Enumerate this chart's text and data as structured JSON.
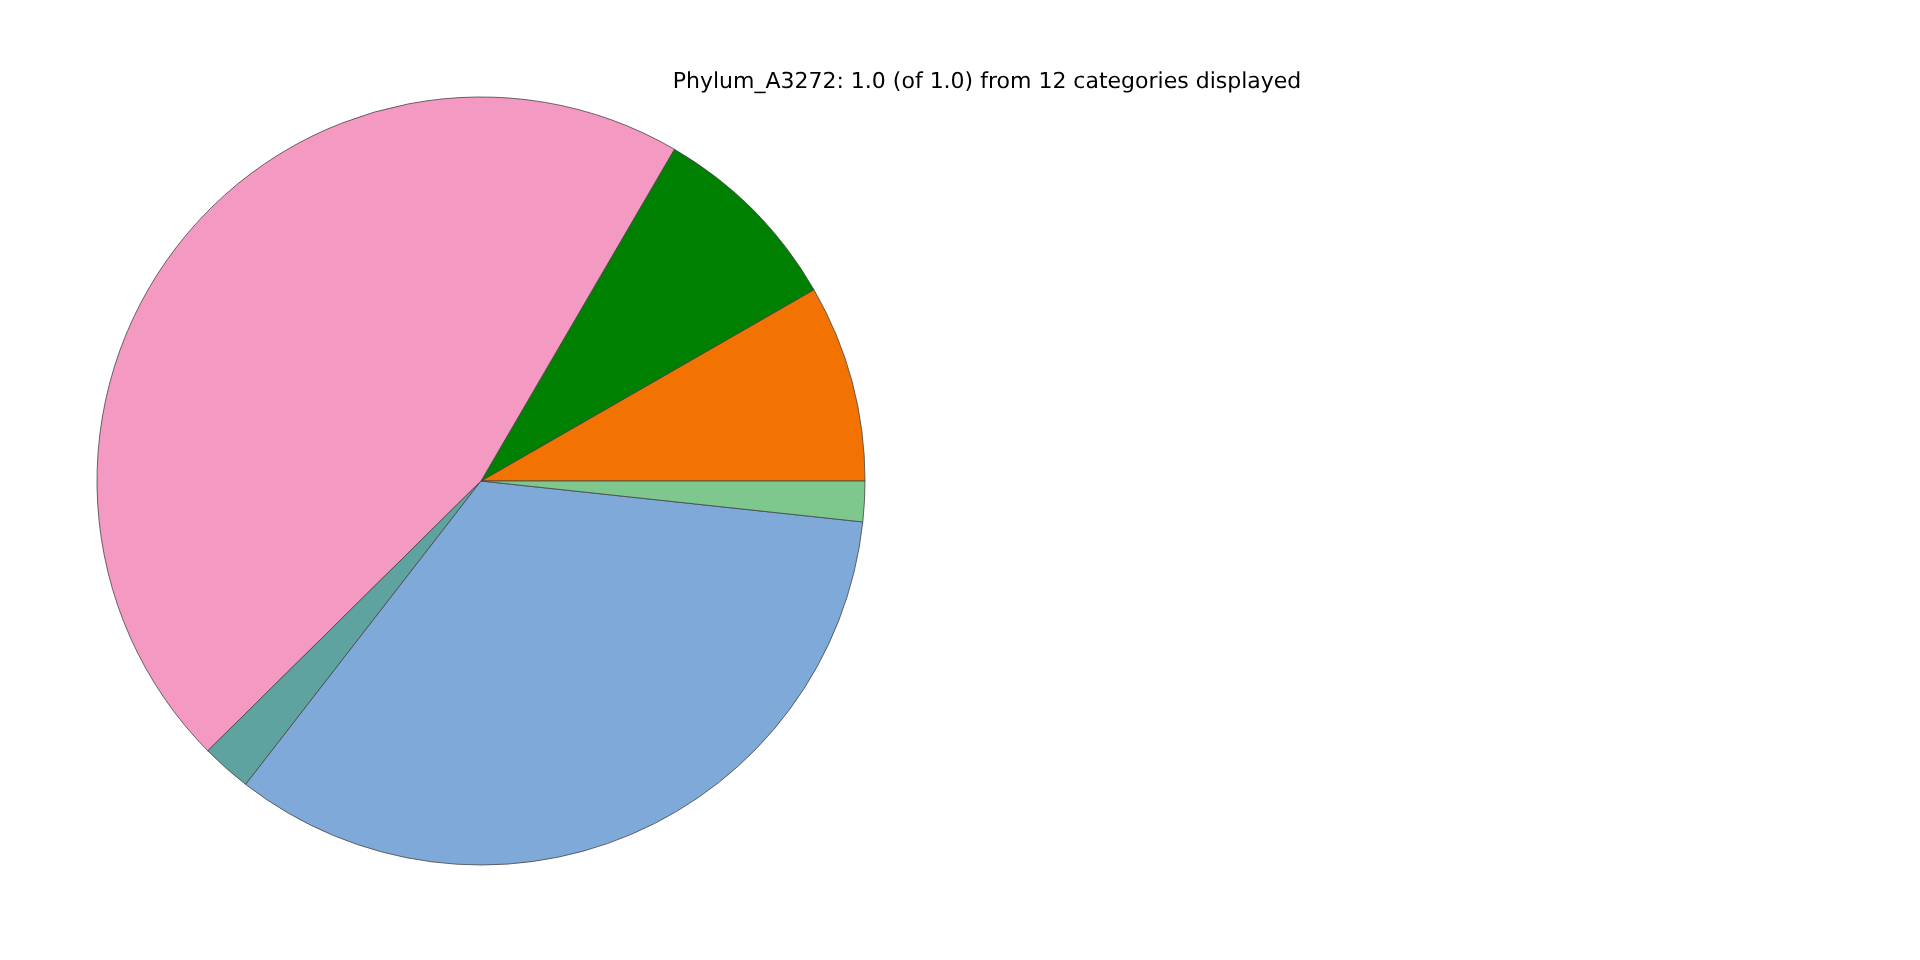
{
  "chart_data": {
    "type": "pie",
    "title": "Phylum_A3272: 1.0 (of 1.0) from 12 categories displayed",
    "categories": [
      null,
      null,
      null,
      null,
      null,
      null
    ],
    "values": [
      8.3,
      8.3,
      45.8,
      2.1,
      33.8,
      1.7
    ],
    "colors": [
      "#f37302",
      "#008000",
      "#f49ac2",
      "#5fa3a0",
      "#7ea9d9",
      "#7ec88e"
    ]
  }
}
